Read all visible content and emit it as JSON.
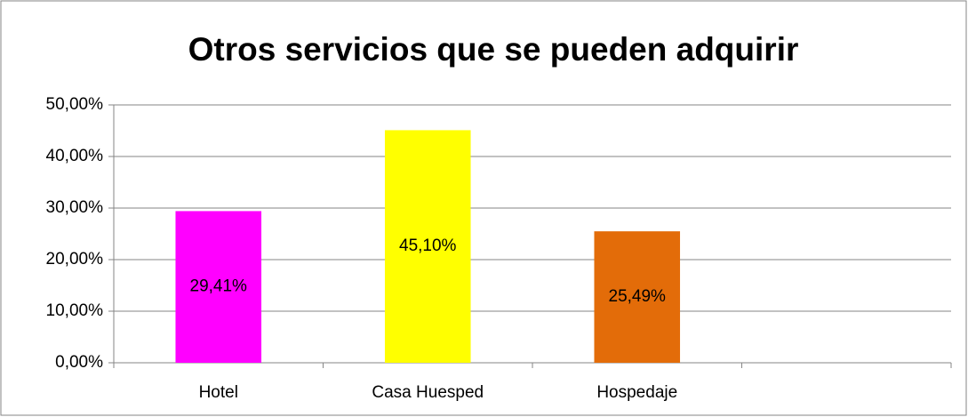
{
  "chart_data": {
    "type": "bar",
    "title": "Otros servicios que se pueden adquirir",
    "categories": [
      "Hotel",
      "Casa Huesped",
      "Hospedaje",
      null
    ],
    "values": [
      29.41,
      45.1,
      25.49,
      null
    ],
    "value_labels": [
      "29,41%",
      "45,10%",
      "25,49%",
      null
    ],
    "colors": [
      "#ff00ff",
      "#ffff00",
      "#e36c09",
      null
    ],
    "ylim": [
      0,
      50
    ],
    "yticks": [
      {
        "value": 0,
        "label": "0,00%"
      },
      {
        "value": 10,
        "label": "10,00%"
      },
      {
        "value": 20,
        "label": "20,00%"
      },
      {
        "value": 30,
        "label": "30,00%"
      },
      {
        "value": 40,
        "label": "40,00%"
      },
      {
        "value": 50,
        "label": "50,00%"
      }
    ],
    "grid": true
  }
}
